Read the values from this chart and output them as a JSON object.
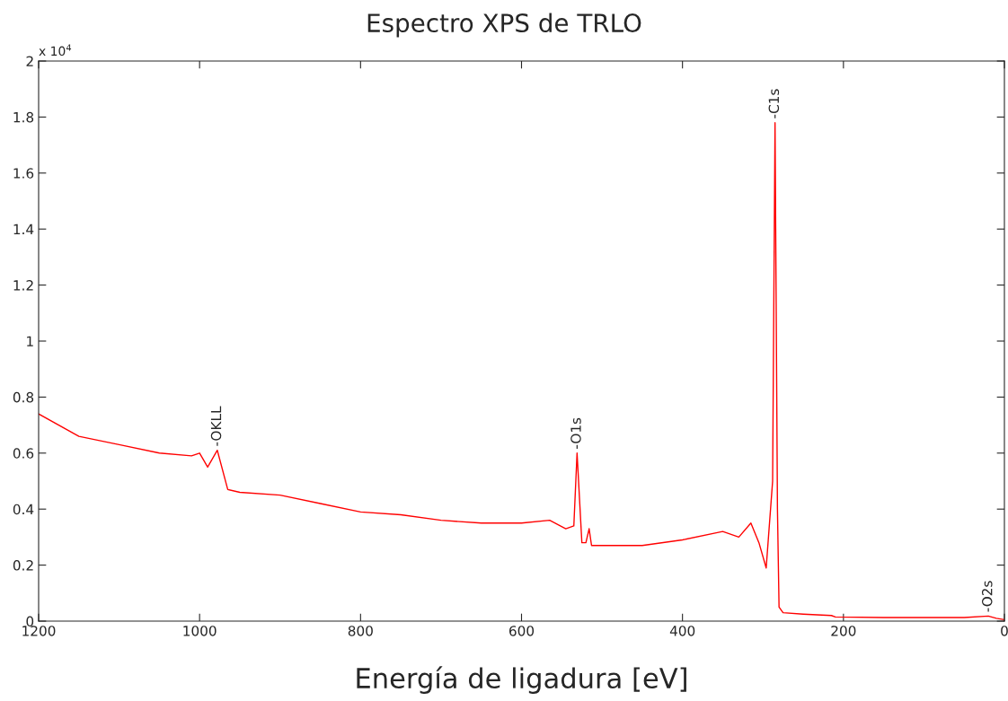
{
  "chart_data": {
    "type": "line",
    "title": "Espectro XPS de TRLO",
    "xlabel": "Energía de ligadura [eV]",
    "x": [
      1200,
      1150,
      1100,
      1050,
      1010,
      1000,
      990,
      978,
      965,
      950,
      900,
      850,
      800,
      750,
      700,
      650,
      600,
      565,
      545,
      535,
      531,
      525,
      520,
      516,
      513,
      500,
      450,
      400,
      350,
      330,
      315,
      305,
      296,
      288,
      285,
      282,
      280,
      275,
      250,
      215,
      210,
      150,
      100,
      50,
      20,
      10,
      0
    ],
    "series": [
      {
        "color": "#ff0000",
        "values": [
          0.74,
          0.66,
          0.63,
          0.6,
          0.59,
          0.6,
          0.55,
          0.61,
          0.47,
          0.46,
          0.45,
          0.42,
          0.39,
          0.38,
          0.36,
          0.35,
          0.35,
          0.36,
          0.33,
          0.34,
          0.6,
          0.28,
          0.28,
          0.33,
          0.27,
          0.27,
          0.27,
          0.29,
          0.32,
          0.3,
          0.35,
          0.28,
          0.19,
          0.5,
          1.78,
          0.4,
          0.05,
          0.03,
          0.025,
          0.02,
          0.015,
          0.013,
          0.013,
          0.013,
          0.018,
          0.01,
          0.005
        ]
      }
    ],
    "xlim": [
      1200,
      0
    ],
    "xticks": [
      1200,
      1000,
      800,
      600,
      400,
      200,
      0
    ],
    "ylim": [
      0,
      2
    ],
    "yticks": [
      0,
      0.2,
      0.4,
      0.6,
      0.8,
      1,
      1.2,
      1.4,
      1.6,
      1.8,
      2
    ],
    "grid": false,
    "legend": false,
    "marker": "none",
    "line_style": "solid",
    "annotations": [
      "x 10$^{4}$",
      {
        "text": "-OKLL",
        "x": 978,
        "y": 0.61
      },
      {
        "text": "-O1s",
        "x": 531,
        "y": 0.6
      },
      {
        "text": "-C1s",
        "x": 285,
        "y": 1.78
      },
      {
        "text": "-O2s",
        "x": 20,
        "y": 0.018
      }
    ]
  }
}
